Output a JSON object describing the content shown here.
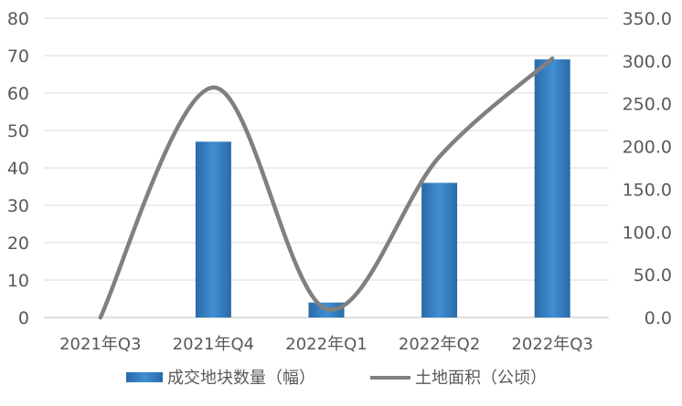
{
  "chart_data": {
    "type": "bar",
    "categories": [
      "2021年Q3",
      "2021年Q4",
      "2022年Q1",
      "2022年Q2",
      "2022年Q3"
    ],
    "series": [
      {
        "name": "成交地块数量（幅）",
        "type": "bar",
        "axis": "left",
        "values": [
          0,
          47,
          4,
          36,
          69
        ],
        "color": "#2e75b6"
      },
      {
        "name": "土地面积（公顷）",
        "type": "line",
        "axis": "right",
        "smooth": true,
        "values": [
          0,
          269,
          10,
          188,
          303
        ],
        "color": "#808080"
      }
    ],
    "y_left": {
      "min": 0,
      "max": 80,
      "step": 10,
      "ticks": [
        "0",
        "10",
        "20",
        "30",
        "40",
        "50",
        "60",
        "70",
        "80"
      ]
    },
    "y_right": {
      "min": 0,
      "max": 350,
      "step": 50,
      "ticks": [
        "0.0",
        "50.0",
        "100.0",
        "150.0",
        "200.0",
        "250.0",
        "300.0",
        "350.0"
      ]
    },
    "grid": true,
    "legend_position": "bottom"
  }
}
